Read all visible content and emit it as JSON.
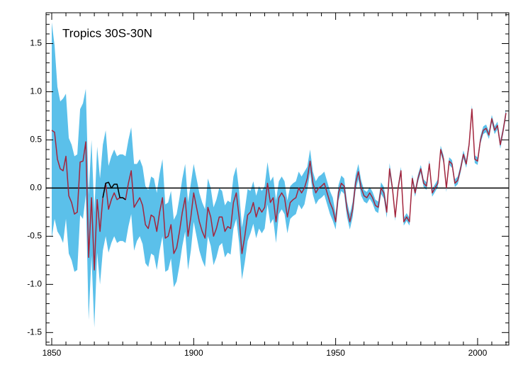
{
  "chart_data": {
    "type": "line",
    "title": "Tropics 30S-30N",
    "x": [
      1850,
      1851,
      1852,
      1853,
      1854,
      1855,
      1856,
      1857,
      1858,
      1859,
      1860,
      1861,
      1862,
      1863,
      1864,
      1865,
      1866,
      1867,
      1868,
      1869,
      1870,
      1871,
      1872,
      1873,
      1874,
      1875,
      1876,
      1877,
      1878,
      1879,
      1880,
      1881,
      1882,
      1883,
      1884,
      1885,
      1886,
      1887,
      1888,
      1889,
      1890,
      1891,
      1892,
      1893,
      1894,
      1895,
      1896,
      1897,
      1898,
      1899,
      1900,
      1901,
      1902,
      1903,
      1904,
      1905,
      1906,
      1907,
      1908,
      1909,
      1910,
      1911,
      1912,
      1913,
      1914,
      1915,
      1916,
      1917,
      1918,
      1919,
      1920,
      1921,
      1922,
      1923,
      1924,
      1925,
      1926,
      1927,
      1928,
      1929,
      1930,
      1931,
      1932,
      1933,
      1934,
      1935,
      1936,
      1937,
      1938,
      1939,
      1940,
      1941,
      1942,
      1943,
      1944,
      1945,
      1946,
      1947,
      1948,
      1949,
      1950,
      1951,
      1952,
      1953,
      1954,
      1955,
      1956,
      1957,
      1958,
      1959,
      1960,
      1961,
      1962,
      1963,
      1964,
      1965,
      1966,
      1967,
      1968,
      1969,
      1970,
      1971,
      1972,
      1973,
      1974,
      1975,
      1976,
      1977,
      1978,
      1979,
      1980,
      1981,
      1982,
      1983,
      1984,
      1985,
      1986,
      1987,
      1988,
      1989,
      1990,
      1991,
      1992,
      1993,
      1994,
      1995,
      1996,
      1997,
      1998,
      1999,
      2000,
      2001,
      2002,
      2003,
      2004,
      2005,
      2006,
      2007,
      2008,
      2009,
      2010
    ],
    "series": [
      {
        "color": "#a3253d",
        "band_color": "#5bc0ea",
        "values": [
          0.6,
          0.58,
          0.3,
          0.2,
          0.18,
          0.33,
          -0.08,
          -0.15,
          -0.27,
          -0.25,
          0.27,
          0.28,
          0.48,
          -0.72,
          -0.1,
          -0.85,
          -0.12,
          -0.45,
          -0.1,
          0.05,
          -0.22,
          -0.12,
          -0.05,
          -0.12,
          -0.1,
          -0.1,
          -0.12,
          0.05,
          0.18,
          -0.2,
          -0.15,
          -0.1,
          -0.18,
          -0.38,
          -0.42,
          -0.28,
          -0.3,
          -0.45,
          -0.25,
          -0.1,
          -0.52,
          -0.5,
          -0.38,
          -0.68,
          -0.62,
          -0.45,
          -0.25,
          -0.1,
          -0.5,
          -0.3,
          -0.05,
          -0.2,
          -0.35,
          -0.45,
          -0.52,
          -0.2,
          -0.3,
          -0.5,
          -0.42,
          -0.3,
          -0.3,
          -0.45,
          -0.4,
          -0.42,
          -0.15,
          -0.05,
          -0.3,
          -0.68,
          -0.5,
          -0.28,
          -0.25,
          -0.15,
          -0.3,
          -0.2,
          -0.25,
          -0.2,
          0.05,
          -0.15,
          -0.1,
          -0.35,
          -0.1,
          -0.05,
          -0.1,
          -0.3,
          -0.15,
          -0.12,
          -0.1,
          0,
          -0.05,
          0,
          0.1,
          0.28,
          0.05,
          -0.05,
          0,
          0.02,
          0.05,
          -0.05,
          -0.15,
          -0.22,
          -0.35,
          -0.05,
          0.05,
          0.02,
          -0.22,
          -0.35,
          -0.22,
          0.05,
          0.17,
          0,
          -0.08,
          -0.1,
          -0.05,
          -0.1,
          -0.18,
          -0.2,
          0,
          -0.05,
          -0.25,
          0.2,
          0,
          -0.3,
          0,
          0.18,
          -0.35,
          -0.3,
          -0.35,
          0.1,
          -0.05,
          0.1,
          0.2,
          0.05,
          0.02,
          0.25,
          -0.05,
          0,
          0.05,
          0.4,
          0.3,
          0,
          0.28,
          0.25,
          0.05,
          0.08,
          0.2,
          0.35,
          0.25,
          0.45,
          0.82,
          0.3,
          0.28,
          0.5,
          0.6,
          0.62,
          0.55,
          0.72,
          0.6,
          0.65,
          0.45,
          0.6,
          0.78
        ],
        "error": [
          1.12,
          0.9,
          0.75,
          0.7,
          0.75,
          0.65,
          0.6,
          0.6,
          0.6,
          0.6,
          0.55,
          0.6,
          0.55,
          0.65,
          0.6,
          0.6,
          0.55,
          0.55,
          0.55,
          0.55,
          0.45,
          0.45,
          0.45,
          0.45,
          0.45,
          0.45,
          0.45,
          0.45,
          0.45,
          0.45,
          0.4,
          0.4,
          0.4,
          0.4,
          0.4,
          0.4,
          0.4,
          0.4,
          0.4,
          0.4,
          0.35,
          0.35,
          0.35,
          0.35,
          0.35,
          0.35,
          0.35,
          0.35,
          0.35,
          0.35,
          0.3,
          0.3,
          0.3,
          0.3,
          0.3,
          0.3,
          0.3,
          0.3,
          0.3,
          0.3,
          0.27,
          0.27,
          0.27,
          0.27,
          0.27,
          0.27,
          0.27,
          0.27,
          0.27,
          0.27,
          0.22,
          0.22,
          0.22,
          0.22,
          0.22,
          0.22,
          0.22,
          0.22,
          0.22,
          0.22,
          0.17,
          0.17,
          0.17,
          0.17,
          0.17,
          0.17,
          0.17,
          0.17,
          0.17,
          0.17,
          0.12,
          0.12,
          0.12,
          0.12,
          0.12,
          0.12,
          0.12,
          0.12,
          0.12,
          0.12,
          0.08,
          0.08,
          0.08,
          0.08,
          0.08,
          0.08,
          0.08,
          0.08,
          0.08,
          0.08,
          0.06,
          0.06,
          0.06,
          0.06,
          0.06,
          0.06,
          0.06,
          0.06,
          0.06,
          0.06,
          0.04,
          0.04,
          0.04,
          0.04,
          0.04,
          0.04,
          0.04,
          0.04,
          0.04,
          0.04,
          0.04,
          0.04,
          0.04,
          0.04,
          0.04,
          0.04,
          0.04,
          0.04,
          0.04,
          0.04,
          0.04,
          0.04,
          0.04,
          0.04,
          0.04,
          0.04,
          0.04,
          0.04,
          0.04,
          0.04,
          0.04,
          0.04,
          0.04,
          0.04,
          0.04,
          0.04,
          0.04,
          0.04,
          0.04,
          0.04,
          0.04
        ]
      },
      {
        "color": "#000000",
        "x": [
          1868,
          1869,
          1870,
          1871,
          1872,
          1873,
          1874,
          1875,
          1876
        ],
        "values": [
          -0.1,
          0.05,
          0.06,
          0.0,
          0.04,
          0.04,
          -0.1,
          -0.1,
          -0.12
        ]
      }
    ],
    "hline": 0,
    "xlim": [
      1848,
      2011
    ],
    "ylim": [
      -1.63,
      1.82
    ],
    "xticks": [
      1850,
      1900,
      1950,
      2000
    ],
    "yticks": [
      {
        "value": -1.5,
        "label": "-1.5"
      },
      {
        "value": -1.0,
        "label": "-1.0"
      },
      {
        "value": -0.5,
        "label": "-0.5"
      },
      {
        "value": 0,
        "label": "0.0"
      },
      {
        "value": 0.5,
        "label": "0.5"
      },
      {
        "value": 1.0,
        "label": "1.0"
      },
      {
        "value": 1.5,
        "label": "1.5"
      }
    ]
  }
}
